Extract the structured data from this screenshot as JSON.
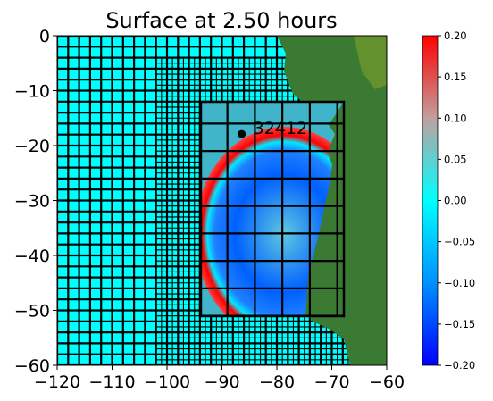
{
  "chart_data": {
    "type": "heatmap",
    "title": "Surface at 2.50 hours",
    "xlim": [
      -120,
      -60
    ],
    "ylim": [
      -60,
      0
    ],
    "xticks": [
      -120,
      -110,
      -100,
      -90,
      -80,
      -70,
      -60
    ],
    "xtick_labels": [
      "−120",
      "−110",
      "−100",
      "−90",
      "−80",
      "−70",
      "−60"
    ],
    "yticks": [
      0,
      -10,
      -20,
      -30,
      -40,
      -50,
      -60
    ],
    "ytick_labels": [
      "0",
      "−10",
      "−20",
      "−30",
      "−40",
      "−50",
      "−60"
    ],
    "colorbar": {
      "range": [
        -0.2,
        0.2
      ],
      "ticks": [
        0.2,
        0.15,
        0.1,
        0.05,
        0.0,
        -0.05,
        -0.1,
        -0.15,
        -0.2
      ],
      "tick_labels": [
        "0.20",
        "0.15",
        "0.10",
        "0.05",
        "0.00",
        "−0.05",
        "−0.10",
        "−0.15",
        "−0.20"
      ],
      "colors": [
        "#0000ff",
        "#0090ff",
        "#00ffff",
        "#c0c0c0",
        "#ff0000"
      ]
    },
    "gauge": {
      "label": "32412",
      "x": -86.4,
      "y": -17.9
    },
    "source": {
      "x": -76.0,
      "y": -35.0
    },
    "regions": [
      {
        "level": 1,
        "x": [
          -120,
          -60
        ],
        "y": [
          -60,
          0
        ],
        "spacing": 2.0
      },
      {
        "level": 2,
        "x": [
          -102,
          -60
        ],
        "y": [
          -60,
          -4
        ],
        "spacing": 1.0
      },
      {
        "level": 3,
        "x": [
          -94,
          -68
        ],
        "y": [
          -51,
          -12
        ],
        "spacing": 5.0
      }
    ],
    "colors": {
      "ocean": "#00ffff",
      "land": "#3a7a32",
      "land_dark": "#4a7a35",
      "land_light": "#7ea02c",
      "grid": "#000000"
    }
  }
}
